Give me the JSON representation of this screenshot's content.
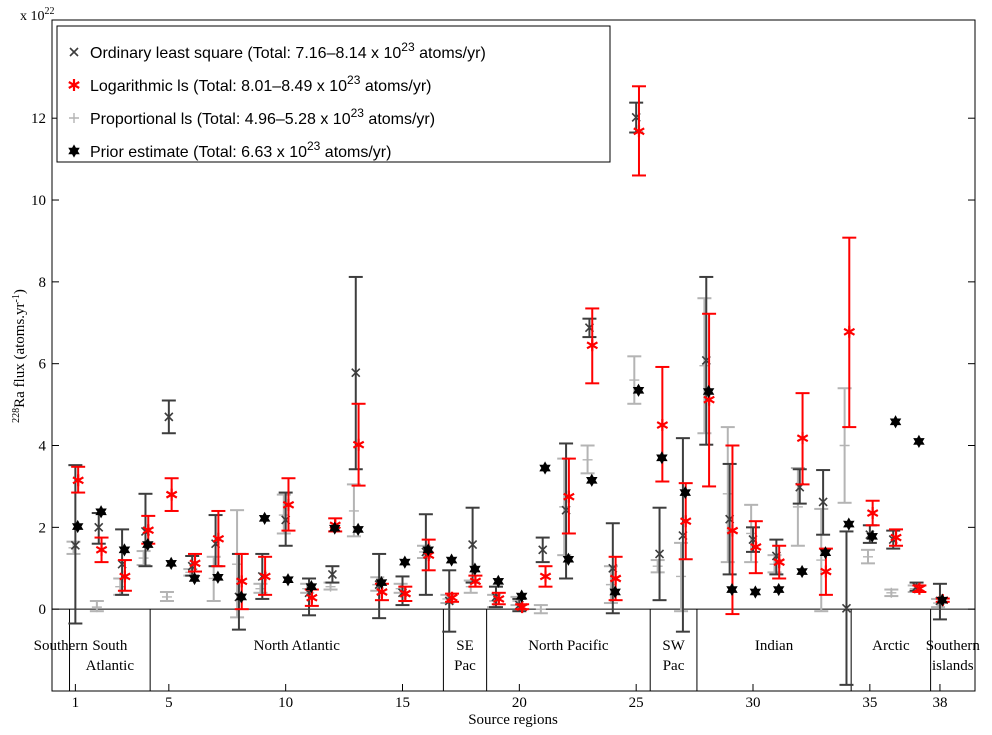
{
  "chart_data": {
    "type": "scatter",
    "exponent_label": "x 10",
    "exponent_sup": "22",
    "ylabel_pre": "228",
    "ylabel_main": "Ra flux (atoms.yr",
    "ylabel_sup": "-1",
    "ylabel_post": ")",
    "xlabel": "Source regions",
    "ylim": [
      -2,
      14.4
    ],
    "xlim": [
      0,
      39.5
    ],
    "yticks": [
      0,
      2,
      4,
      6,
      8,
      10,
      12
    ],
    "xticks": [
      1,
      5,
      10,
      15,
      20,
      25,
      30,
      35,
      38
    ],
    "colors": {
      "ordinary": "#3d3d3d",
      "logarithmic": "#ff0000",
      "proportional": "#b4b4b4",
      "prior": "#000000"
    },
    "legend": [
      {
        "key": "ordinary",
        "marker": "x",
        "text": "Ordinary least square (Total: 7.16–8.14 x 10",
        "sup": "23",
        "tail": " atoms/yr)"
      },
      {
        "key": "logarithmic",
        "marker": "asterisk",
        "text": "Logarithmic ls (Total: 8.01–8.49 x 10",
        "sup": "23",
        "tail": " atoms/yr)"
      },
      {
        "key": "proportional",
        "marker": "plus",
        "text": "Proportional ls (Total: 4.96–5.28 x 10",
        "sup": "23",
        "tail": " atoms/yr)"
      },
      {
        "key": "prior",
        "marker": "hexagram",
        "text": "Prior estimate (Total: 6.63 x 10",
        "sup": "23",
        "tail": " atoms/yr)"
      }
    ],
    "regions": [
      {
        "name": [
          "Southern"
        ],
        "x_start": 0,
        "x_end": 0.75
      },
      {
        "name": [
          "South",
          "Atlantic"
        ],
        "x_start": 0.75,
        "x_end": 4.2
      },
      {
        "name": [
          "North Atlantic"
        ],
        "x_start": 4.2,
        "x_end": 16.75
      },
      {
        "name": [
          "SE",
          "Pac"
        ],
        "x_start": 16.75,
        "x_end": 18.6
      },
      {
        "name": [
          "North Pacific"
        ],
        "x_start": 18.6,
        "x_end": 25.6
      },
      {
        "name": [
          "SW",
          "Pac"
        ],
        "x_start": 25.6,
        "x_end": 27.6
      },
      {
        "name": [
          "Indian"
        ],
        "x_start": 27.6,
        "x_end": 34.2
      },
      {
        "name": [
          "Arctic"
        ],
        "x_start": 34.2,
        "x_end": 37.6
      },
      {
        "name": [
          "Southern",
          "islands"
        ],
        "x_start": 37.6,
        "x_end": 39.5
      }
    ],
    "series": [
      {
        "key": "ordinary",
        "name": "Ordinary least square",
        "points": [
          {
            "x": 1,
            "y": 1.56,
            "lo": -0.35,
            "hi": 3.52
          },
          {
            "x": 2,
            "y": 2.0,
            "lo": 1.6,
            "hi": 2.35
          },
          {
            "x": 3,
            "y": 1.1,
            "lo": 0.35,
            "hi": 1.95
          },
          {
            "x": 4,
            "y": 1.9,
            "lo": 1.05,
            "hi": 2.82
          },
          {
            "x": 5,
            "y": 4.7,
            "lo": 4.3,
            "hi": 5.1
          },
          {
            "x": 6,
            "y": 1.05,
            "lo": 0.82,
            "hi": 1.3
          },
          {
            "x": 7,
            "y": 1.6,
            "lo": 1.05,
            "hi": 2.3
          },
          {
            "x": 8,
            "y": 0.3,
            "lo": -0.5,
            "hi": 1.35
          },
          {
            "x": 9,
            "y": 0.8,
            "lo": 0.25,
            "hi": 1.35
          },
          {
            "x": 10,
            "y": 2.18,
            "lo": 1.55,
            "hi": 2.85
          },
          {
            "x": 11,
            "y": 0.4,
            "lo": -0.15,
            "hi": 0.75
          },
          {
            "x": 12,
            "y": 0.85,
            "lo": 0.65,
            "hi": 1.05
          },
          {
            "x": 13,
            "y": 5.78,
            "lo": 3.42,
            "hi": 8.12
          },
          {
            "x": 14,
            "y": 0.6,
            "lo": -0.22,
            "hi": 1.35
          },
          {
            "x": 15,
            "y": 0.4,
            "lo": 0.1,
            "hi": 0.8
          },
          {
            "x": 16,
            "y": 1.4,
            "lo": 0.35,
            "hi": 2.32
          },
          {
            "x": 17,
            "y": 0.2,
            "lo": -0.55,
            "hi": 0.95
          },
          {
            "x": 18,
            "y": 1.58,
            "lo": 0.65,
            "hi": 2.48
          },
          {
            "x": 19,
            "y": 0.3,
            "lo": 0.05,
            "hi": 0.55
          },
          {
            "x": 20,
            "y": 0.1,
            "lo": -0.05,
            "hi": 0.25
          },
          {
            "x": 21,
            "y": 1.45,
            "lo": 1.15,
            "hi": 1.75
          },
          {
            "x": 22,
            "y": 2.42,
            "lo": 0.75,
            "hi": 4.05
          },
          {
            "x": 23,
            "y": 6.88,
            "lo": 6.65,
            "hi": 7.1
          },
          {
            "x": 24,
            "y": 1.0,
            "lo": -0.1,
            "hi": 2.1
          },
          {
            "x": 25,
            "y": 12.02,
            "lo": 11.65,
            "hi": 12.38
          },
          {
            "x": 26,
            "y": 1.35,
            "lo": 0.22,
            "hi": 2.48
          },
          {
            "x": 27,
            "y": 1.8,
            "lo": -0.55,
            "hi": 4.18
          },
          {
            "x": 28,
            "y": 6.08,
            "lo": 4.02,
            "hi": 8.12
          },
          {
            "x": 29,
            "y": 2.2,
            "lo": 0.85,
            "hi": 3.55
          },
          {
            "x": 30,
            "y": 1.7,
            "lo": 1.4,
            "hi": 2.0
          },
          {
            "x": 31,
            "y": 1.3,
            "lo": 0.85,
            "hi": 1.7
          },
          {
            "x": 32,
            "y": 2.98,
            "lo": 2.58,
            "hi": 3.42
          },
          {
            "x": 33,
            "y": 2.62,
            "lo": 1.82,
            "hi": 3.4
          },
          {
            "x": 34,
            "y": 0.02,
            "lo": -1.85,
            "hi": 1.9
          },
          {
            "x": 35,
            "y": 1.82,
            "lo": 1.62,
            "hi": 2.05
          },
          {
            "x": 36,
            "y": 1.7,
            "lo": 1.48,
            "hi": 1.92
          },
          {
            "x": 37,
            "y": 0.55,
            "lo": 0.45,
            "hi": 0.65
          },
          {
            "x": 38,
            "y": 0.2,
            "lo": -0.25,
            "hi": 0.62
          }
        ]
      },
      {
        "key": "logarithmic",
        "name": "Logarithmic ls",
        "points": [
          {
            "x": 1,
            "y": 3.15,
            "lo": 2.85,
            "hi": 3.48
          },
          {
            "x": 2,
            "y": 1.45,
            "lo": 1.15,
            "hi": 1.75
          },
          {
            "x": 3,
            "y": 0.8,
            "lo": 0.45,
            "hi": 1.2
          },
          {
            "x": 4,
            "y": 1.93,
            "lo": 1.6,
            "hi": 2.28
          },
          {
            "x": 5,
            "y": 2.8,
            "lo": 2.4,
            "hi": 3.2
          },
          {
            "x": 6,
            "y": 1.12,
            "lo": 0.92,
            "hi": 1.35
          },
          {
            "x": 7,
            "y": 1.72,
            "lo": 1.05,
            "hi": 2.4
          },
          {
            "x": 8,
            "y": 0.68,
            "lo": 0.0,
            "hi": 1.35
          },
          {
            "x": 9,
            "y": 0.8,
            "lo": 0.35,
            "hi": 1.28
          },
          {
            "x": 10,
            "y": 2.55,
            "lo": 1.92,
            "hi": 3.2
          },
          {
            "x": 11,
            "y": 0.28,
            "lo": 0.08,
            "hi": 0.48
          },
          {
            "x": 12,
            "y": 2.05,
            "lo": 1.9,
            "hi": 2.22
          },
          {
            "x": 13,
            "y": 4.02,
            "lo": 3.02,
            "hi": 5.02
          },
          {
            "x": 14,
            "y": 0.42,
            "lo": 0.22,
            "hi": 0.62
          },
          {
            "x": 15,
            "y": 0.38,
            "lo": 0.2,
            "hi": 0.55
          },
          {
            "x": 16,
            "y": 1.32,
            "lo": 0.95,
            "hi": 1.7
          },
          {
            "x": 17,
            "y": 0.28,
            "lo": 0.18,
            "hi": 0.38
          },
          {
            "x": 18,
            "y": 0.68,
            "lo": 0.55,
            "hi": 0.82
          },
          {
            "x": 19,
            "y": 0.25,
            "lo": 0.12,
            "hi": 0.4
          },
          {
            "x": 20,
            "y": 0.05,
            "lo": 0.0,
            "hi": 0.12
          },
          {
            "x": 21,
            "y": 0.8,
            "lo": 0.55,
            "hi": 1.05
          },
          {
            "x": 22,
            "y": 2.75,
            "lo": 1.85,
            "hi": 3.68
          },
          {
            "x": 23,
            "y": 6.45,
            "lo": 5.52,
            "hi": 7.35
          },
          {
            "x": 24,
            "y": 0.75,
            "lo": 0.22,
            "hi": 1.28
          },
          {
            "x": 25,
            "y": 11.68,
            "lo": 10.6,
            "hi": 12.78
          },
          {
            "x": 26,
            "y": 4.5,
            "lo": 3.12,
            "hi": 5.92
          },
          {
            "x": 27,
            "y": 2.15,
            "lo": 1.22,
            "hi": 3.08
          },
          {
            "x": 28,
            "y": 5.12,
            "lo": 3.0,
            "hi": 7.22
          },
          {
            "x": 29,
            "y": 1.92,
            "lo": -0.12,
            "hi": 4.0
          },
          {
            "x": 30,
            "y": 1.52,
            "lo": 0.88,
            "hi": 2.15
          },
          {
            "x": 31,
            "y": 1.15,
            "lo": 0.75,
            "hi": 1.55
          },
          {
            "x": 32,
            "y": 4.18,
            "lo": 3.05,
            "hi": 5.28
          },
          {
            "x": 33,
            "y": 0.92,
            "lo": 0.35,
            "hi": 1.48
          },
          {
            "x": 34,
            "y": 6.78,
            "lo": 4.45,
            "hi": 9.08
          },
          {
            "x": 35,
            "y": 2.35,
            "lo": 2.05,
            "hi": 2.65
          },
          {
            "x": 36,
            "y": 1.75,
            "lo": 1.55,
            "hi": 1.95
          },
          {
            "x": 37,
            "y": 0.5,
            "lo": 0.42,
            "hi": 0.58
          },
          {
            "x": 38,
            "y": 0.22,
            "lo": 0.18,
            "hi": 0.26
          }
        ]
      },
      {
        "key": "proportional",
        "name": "Proportional ls",
        "points": [
          {
            "x": 1,
            "y": 1.5,
            "lo": 1.35,
            "hi": 1.65
          },
          {
            "x": 2,
            "y": 0.05,
            "lo": -0.05,
            "hi": 0.2
          },
          {
            "x": 3,
            "y": 0.55,
            "lo": 0.35,
            "hi": 0.75
          },
          {
            "x": 4,
            "y": 1.25,
            "lo": 1.08,
            "hi": 1.42
          },
          {
            "x": 5,
            "y": 0.3,
            "lo": 0.2,
            "hi": 0.42
          },
          {
            "x": 6,
            "y": 0.9,
            "lo": 0.82,
            "hi": 0.98
          },
          {
            "x": 7,
            "y": 0.75,
            "lo": 0.2,
            "hi": 1.28
          },
          {
            "x": 8,
            "y": 1.1,
            "lo": -0.2,
            "hi": 2.42
          },
          {
            "x": 9,
            "y": 0.5,
            "lo": 0.4,
            "hi": 0.62
          },
          {
            "x": 10,
            "y": 2.3,
            "lo": 1.85,
            "hi": 2.8
          },
          {
            "x": 11,
            "y": 0.5,
            "lo": 0.4,
            "hi": 0.62
          },
          {
            "x": 12,
            "y": 0.55,
            "lo": 0.48,
            "hi": 0.65
          },
          {
            "x": 13,
            "y": 2.4,
            "lo": 1.78,
            "hi": 3.05
          },
          {
            "x": 14,
            "y": 0.6,
            "lo": 0.45,
            "hi": 0.78
          },
          {
            "x": 15,
            "y": 0.5,
            "lo": 0.4,
            "hi": 0.62
          },
          {
            "x": 16,
            "y": 1.4,
            "lo": 1.25,
            "hi": 1.55
          },
          {
            "x": 17,
            "y": 0.25,
            "lo": 0.15,
            "hi": 0.35
          },
          {
            "x": 18,
            "y": 0.55,
            "lo": 0.4,
            "hi": 0.7
          },
          {
            "x": 19,
            "y": 0.2,
            "lo": 0.05,
            "hi": 0.35
          },
          {
            "x": 20,
            "y": 0.2,
            "lo": 0.1,
            "hi": 0.3
          },
          {
            "x": 21,
            "y": 0.0,
            "lo": -0.1,
            "hi": 0.1
          },
          {
            "x": 22,
            "y": 2.5,
            "lo": 1.32,
            "hi": 3.68
          },
          {
            "x": 23,
            "y": 3.65,
            "lo": 3.32,
            "hi": 4.0
          },
          {
            "x": 24,
            "y": 0.6,
            "lo": 0.15,
            "hi": 1.05
          },
          {
            "x": 25,
            "y": 5.6,
            "lo": 5.02,
            "hi": 6.18
          },
          {
            "x": 26,
            "y": 1.05,
            "lo": 0.9,
            "hi": 1.2
          },
          {
            "x": 27,
            "y": 0.8,
            "lo": -0.05,
            "hi": 1.62
          },
          {
            "x": 28,
            "y": 5.95,
            "lo": 4.3,
            "hi": 7.6
          },
          {
            "x": 29,
            "y": 2.82,
            "lo": 1.15,
            "hi": 4.45
          },
          {
            "x": 30,
            "y": 1.85,
            "lo": 1.15,
            "hi": 2.55
          },
          {
            "x": 31,
            "y": 1.1,
            "lo": 0.9,
            "hi": 1.32
          },
          {
            "x": 32,
            "y": 2.5,
            "lo": 1.55,
            "hi": 3.45
          },
          {
            "x": 33,
            "y": 1.2,
            "lo": -0.05,
            "hi": 2.45
          },
          {
            "x": 34,
            "y": 4.0,
            "lo": 2.6,
            "hi": 5.4
          },
          {
            "x": 35,
            "y": 1.28,
            "lo": 1.12,
            "hi": 1.45
          },
          {
            "x": 36,
            "y": 0.4,
            "lo": 0.32,
            "hi": 0.48
          },
          {
            "x": 37,
            "y": 0.5,
            "lo": 0.42,
            "hi": 0.58
          },
          {
            "x": 38,
            "y": 0.15,
            "lo": 0.05,
            "hi": 0.25
          }
        ]
      },
      {
        "key": "prior",
        "name": "Prior estimate",
        "points": [
          {
            "x": 1,
            "y": 2.02
          },
          {
            "x": 2,
            "y": 2.38
          },
          {
            "x": 3,
            "y": 1.45
          },
          {
            "x": 4,
            "y": 1.58
          },
          {
            "x": 5,
            "y": 1.12
          },
          {
            "x": 6,
            "y": 0.75
          },
          {
            "x": 7,
            "y": 0.78
          },
          {
            "x": 8,
            "y": 0.3
          },
          {
            "x": 9,
            "y": 2.22
          },
          {
            "x": 10,
            "y": 0.72
          },
          {
            "x": 11,
            "y": 0.55
          },
          {
            "x": 12,
            "y": 1.98
          },
          {
            "x": 13,
            "y": 1.95
          },
          {
            "x": 14,
            "y": 0.65
          },
          {
            "x": 15,
            "y": 1.15
          },
          {
            "x": 16,
            "y": 1.45
          },
          {
            "x": 17,
            "y": 1.2
          },
          {
            "x": 18,
            "y": 0.98
          },
          {
            "x": 19,
            "y": 0.68
          },
          {
            "x": 20,
            "y": 0.32
          },
          {
            "x": 21,
            "y": 3.45
          },
          {
            "x": 22,
            "y": 1.22
          },
          {
            "x": 23,
            "y": 3.15
          },
          {
            "x": 24,
            "y": 0.42
          },
          {
            "x": 25,
            "y": 5.35
          },
          {
            "x": 26,
            "y": 3.7
          },
          {
            "x": 27,
            "y": 2.85
          },
          {
            "x": 28,
            "y": 5.32
          },
          {
            "x": 29,
            "y": 0.48
          },
          {
            "x": 30,
            "y": 0.42
          },
          {
            "x": 31,
            "y": 0.48
          },
          {
            "x": 32,
            "y": 0.92
          },
          {
            "x": 33,
            "y": 1.38
          },
          {
            "x": 34,
            "y": 2.08
          },
          {
            "x": 35,
            "y": 1.78
          },
          {
            "x": 36,
            "y": 4.58
          },
          {
            "x": 37,
            "y": 4.1
          },
          {
            "x": 38,
            "y": 0.22
          }
        ]
      }
    ]
  }
}
